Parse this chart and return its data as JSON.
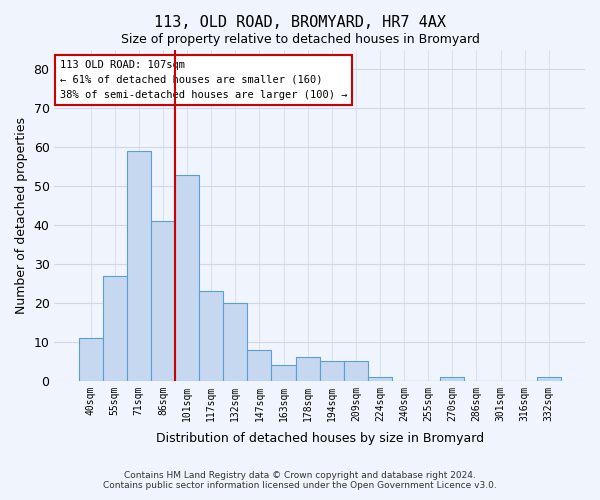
{
  "title": "113, OLD ROAD, BROMYARD, HR7 4AX",
  "subtitle": "Size of property relative to detached houses in Bromyard",
  "xlabel": "Distribution of detached houses by size in Bromyard",
  "ylabel": "Number of detached properties",
  "bar_values": [
    11,
    27,
    59,
    41,
    53,
    23,
    20,
    8,
    4,
    6,
    5,
    5,
    1,
    0,
    0,
    1,
    0,
    0,
    0,
    1
  ],
  "bar_labels": [
    "40sqm",
    "55sqm",
    "71sqm",
    "86sqm",
    "101sqm",
    "117sqm",
    "132sqm",
    "147sqm",
    "163sqm",
    "178sqm",
    "194sqm",
    "209sqm",
    "224sqm",
    "240sqm",
    "255sqm",
    "270sqm",
    "286sqm",
    "301sqm",
    "316sqm",
    "332sqm"
  ],
  "bar_color": "#c5d8f0",
  "bar_edge_color": "#5a9fd4",
  "property_line_x": 4,
  "property_line_color": "#cc0000",
  "annotation_line1": "113 OLD ROAD: 107sqm",
  "annotation_line2": "← 61% of detached houses are smaller (160)",
  "annotation_line3": "38% of semi-detached houses are larger (100) →",
  "annotation_box_color": "#ffffff",
  "annotation_box_edge": "#cc0000",
  "ylim": [
    0,
    85
  ],
  "yticks": [
    0,
    10,
    20,
    30,
    40,
    50,
    60,
    70,
    80
  ],
  "grid_color": "#d0d8e8",
  "background_color": "#f0f4fc",
  "footer_line1": "Contains HM Land Registry data © Crown copyright and database right 2024.",
  "footer_line2": "Contains public sector information licensed under the Open Government Licence v3.0.",
  "figsize": [
    6.0,
    5.0
  ],
  "dpi": 100
}
